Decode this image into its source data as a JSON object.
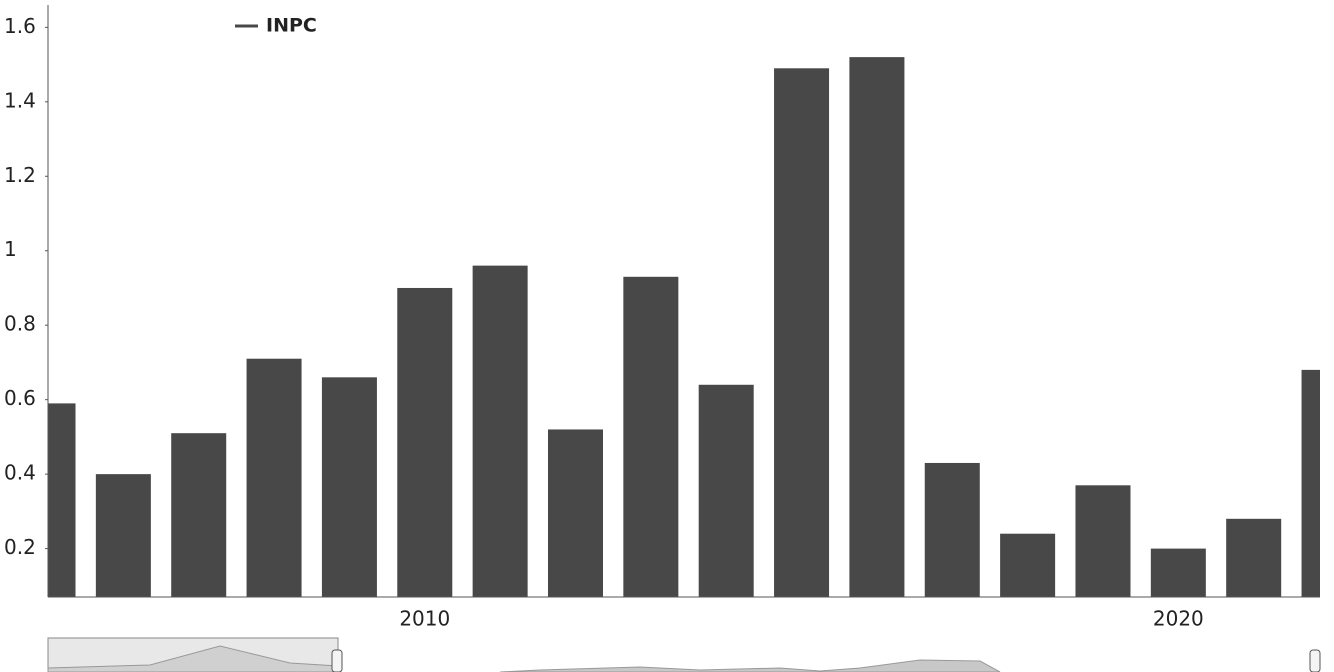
{
  "chart_data": {
    "type": "bar",
    "x": [
      2005,
      2006,
      2007,
      2008,
      2009,
      2010,
      2011,
      2012,
      2013,
      2014,
      2015,
      2016,
      2017,
      2018,
      2019,
      2020,
      2021,
      2022
    ],
    "series": [
      {
        "name": "INPC",
        "color": "#484848",
        "values": [
          0.59,
          0.4,
          0.51,
          0.71,
          0.66,
          0.9,
          0.96,
          0.52,
          0.93,
          0.64,
          1.49,
          1.52,
          0.43,
          0.24,
          0.37,
          0.2,
          0.28,
          0.68
        ]
      }
    ],
    "xlim": [
      2005.0,
      2021.88
    ],
    "xticks": [
      2010,
      2020
    ],
    "ylim": [
      0.07,
      1.66
    ],
    "yticks": [
      0.2,
      0.4,
      0.6,
      0.8,
      1,
      1.2,
      1.4,
      1.6
    ],
    "legend": "top-left"
  }
}
